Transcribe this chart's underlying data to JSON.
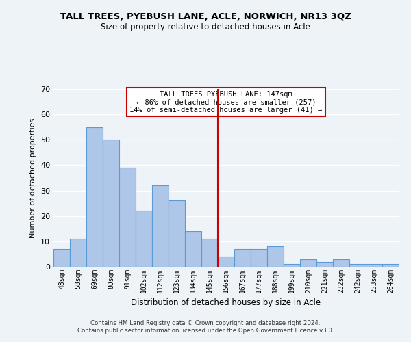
{
  "title": "TALL TREES, PYEBUSH LANE, ACLE, NORWICH, NR13 3QZ",
  "subtitle": "Size of property relative to detached houses in Acle",
  "xlabel": "Distribution of detached houses by size in Acle",
  "ylabel": "Number of detached properties",
  "footnote1": "Contains HM Land Registry data © Crown copyright and database right 2024.",
  "footnote2": "Contains public sector information licensed under the Open Government Licence v3.0.",
  "bar_labels": [
    "48sqm",
    "58sqm",
    "69sqm",
    "80sqm",
    "91sqm",
    "102sqm",
    "112sqm",
    "123sqm",
    "134sqm",
    "145sqm",
    "156sqm",
    "167sqm",
    "177sqm",
    "188sqm",
    "199sqm",
    "210sqm",
    "221sqm",
    "232sqm",
    "242sqm",
    "253sqm",
    "264sqm"
  ],
  "bar_values": [
    7,
    11,
    55,
    50,
    39,
    22,
    32,
    26,
    14,
    11,
    4,
    7,
    7,
    8,
    1,
    3,
    2,
    3,
    1,
    1,
    1
  ],
  "bar_color": "#aec6e8",
  "bar_edge_color": "#5b9bd5",
  "property_label": "TALL TREES PYEBUSH LANE: 147sqm",
  "annotation_line1": "← 86% of detached houses are smaller (257)",
  "annotation_line2": "14% of semi-detached houses are larger (41) →",
  "vline_color": "#cc0000",
  "annotation_box_color": "#cc0000",
  "ylim": [
    0,
    70
  ],
  "yticks": [
    0,
    10,
    20,
    30,
    40,
    50,
    60,
    70
  ],
  "bg_color": "#eef3f8",
  "plot_bg_color": "#eef3f8",
  "grid_color": "#ffffff",
  "vline_x_index": 9.5
}
